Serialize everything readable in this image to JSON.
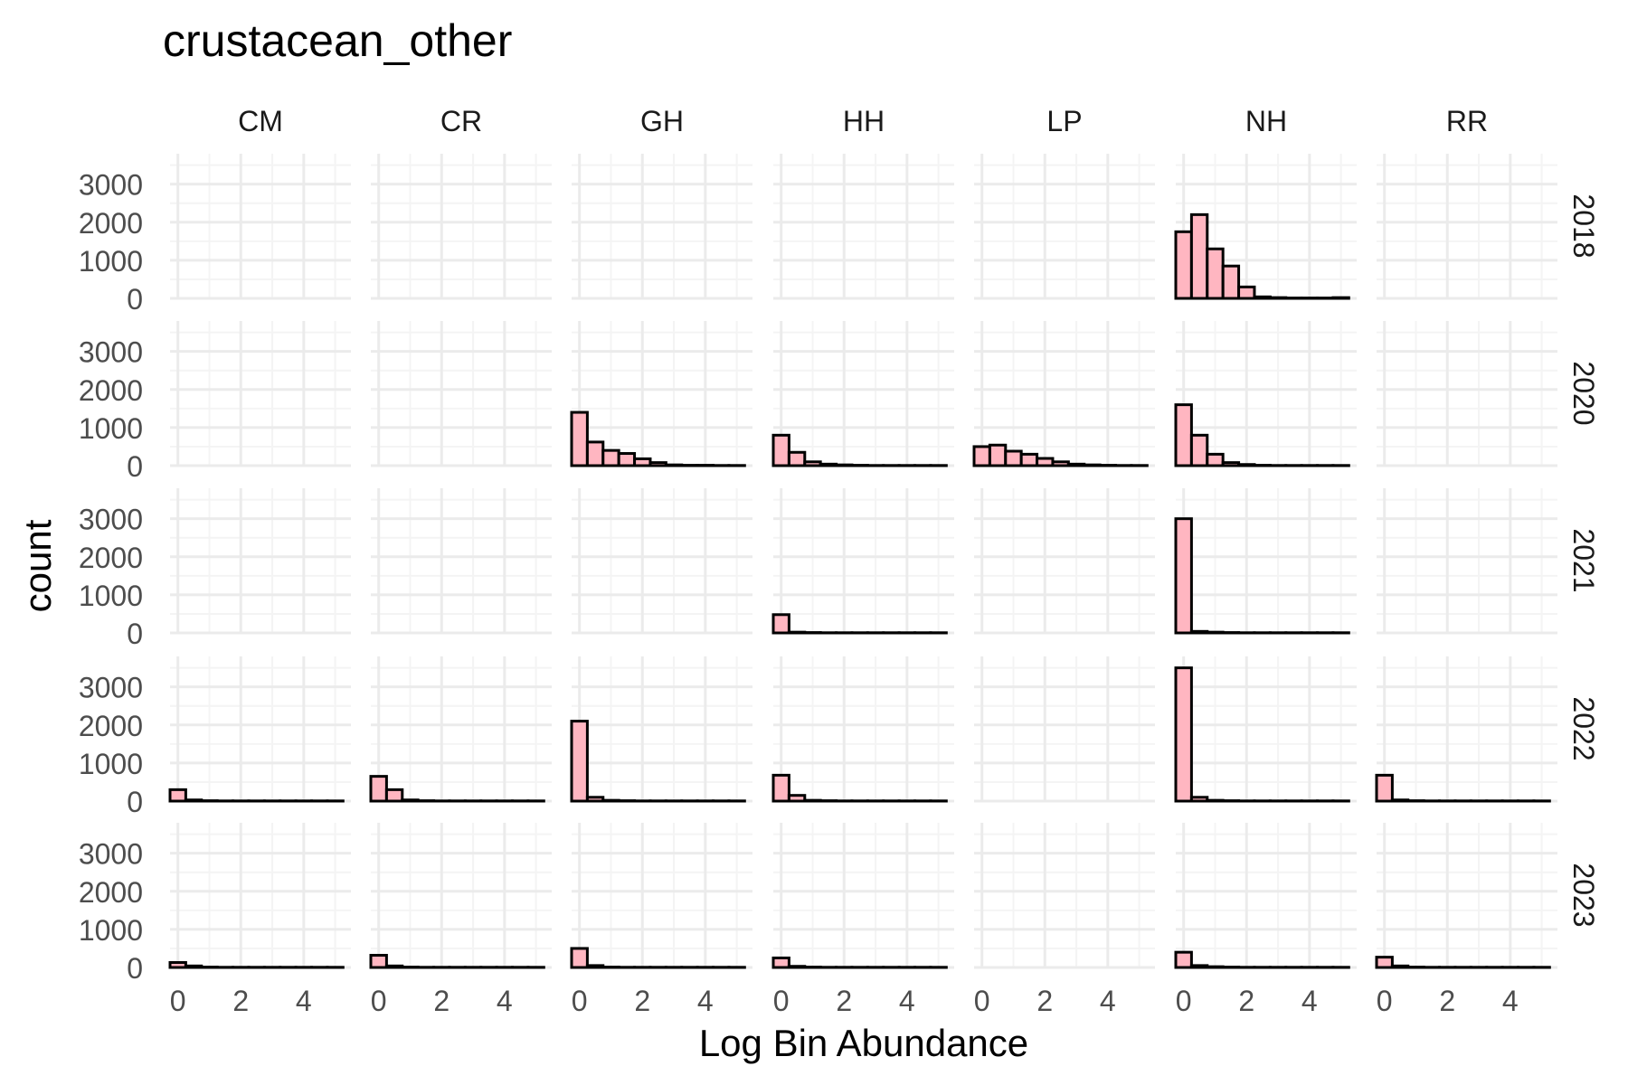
{
  "chart_data": {
    "type": "bar",
    "title": "crustacean_other",
    "xlabel": "Log Bin Abundance",
    "ylabel": "count",
    "facet_columns": [
      "CM",
      "CR",
      "GH",
      "HH",
      "LP",
      "NH",
      "RR"
    ],
    "facet_rows": [
      "2018",
      "2020",
      "2021",
      "2022",
      "2023"
    ],
    "xlim": [
      -0.25,
      5.5
    ],
    "ylim": [
      0,
      3800
    ],
    "x_ticks": [
      0,
      2,
      4
    ],
    "y_ticks": [
      0,
      1000,
      2000,
      3000
    ],
    "grid": true,
    "bar_fill": "#ffb6c1",
    "bar_stroke": "#000000",
    "bin_edges": [
      -0.25,
      0.25,
      0.75,
      1.25,
      1.75,
      2.25,
      2.75,
      3.25,
      3.75,
      4.25,
      4.75,
      5.25
    ],
    "panels": [
      {
        "column": "NH",
        "row": "2018",
        "values": [
          1750,
          2200,
          1300,
          850,
          300,
          40,
          20,
          10,
          10,
          10,
          20
        ]
      },
      {
        "column": "GH",
        "row": "2020",
        "values": [
          1400,
          620,
          400,
          320,
          180,
          80,
          20,
          10,
          10,
          5,
          5
        ]
      },
      {
        "column": "HH",
        "row": "2020",
        "values": [
          800,
          350,
          100,
          40,
          20,
          10,
          5,
          5,
          5,
          5,
          5
        ]
      },
      {
        "column": "LP",
        "row": "2020",
        "values": [
          500,
          540,
          380,
          300,
          190,
          100,
          40,
          20,
          10,
          5,
          5
        ]
      },
      {
        "column": "NH",
        "row": "2020",
        "values": [
          1600,
          800,
          300,
          80,
          30,
          10,
          5,
          5,
          5,
          5,
          5
        ]
      },
      {
        "column": "HH",
        "row": "2021",
        "values": [
          480,
          20,
          10,
          5,
          5,
          5,
          5,
          5,
          5,
          5,
          5
        ]
      },
      {
        "column": "NH",
        "row": "2021",
        "values": [
          3000,
          40,
          20,
          10,
          5,
          5,
          5,
          5,
          5,
          5,
          5
        ]
      },
      {
        "column": "CM",
        "row": "2022",
        "values": [
          300,
          30,
          10,
          5,
          5,
          5,
          5,
          5,
          5,
          5,
          5
        ]
      },
      {
        "column": "CR",
        "row": "2022",
        "values": [
          650,
          300,
          30,
          10,
          5,
          5,
          5,
          5,
          5,
          5,
          5
        ]
      },
      {
        "column": "GH",
        "row": "2022",
        "values": [
          2100,
          100,
          20,
          10,
          5,
          5,
          5,
          5,
          5,
          5,
          5
        ]
      },
      {
        "column": "HH",
        "row": "2022",
        "values": [
          680,
          150,
          20,
          10,
          5,
          5,
          5,
          5,
          5,
          5,
          5
        ]
      },
      {
        "column": "NH",
        "row": "2022",
        "values": [
          3500,
          100,
          20,
          10,
          5,
          5,
          5,
          5,
          5,
          5,
          5
        ]
      },
      {
        "column": "RR",
        "row": "2022",
        "values": [
          680,
          30,
          10,
          5,
          5,
          5,
          5,
          5,
          5,
          5,
          5
        ]
      },
      {
        "column": "CM",
        "row": "2023",
        "values": [
          130,
          40,
          10,
          5,
          5,
          5,
          5,
          5,
          5,
          5,
          5
        ]
      },
      {
        "column": "CR",
        "row": "2023",
        "values": [
          320,
          40,
          10,
          5,
          5,
          5,
          5,
          5,
          5,
          5,
          5
        ]
      },
      {
        "column": "GH",
        "row": "2023",
        "values": [
          500,
          50,
          10,
          5,
          5,
          5,
          5,
          5,
          5,
          5,
          5
        ]
      },
      {
        "column": "HH",
        "row": "2023",
        "values": [
          250,
          30,
          10,
          5,
          5,
          5,
          5,
          5,
          5,
          5,
          5
        ]
      },
      {
        "column": "NH",
        "row": "2023",
        "values": [
          400,
          50,
          20,
          10,
          5,
          5,
          5,
          5,
          5,
          5,
          5
        ]
      },
      {
        "column": "RR",
        "row": "2023",
        "values": [
          270,
          40,
          10,
          5,
          5,
          5,
          5,
          5,
          5,
          5,
          5
        ]
      }
    ]
  }
}
